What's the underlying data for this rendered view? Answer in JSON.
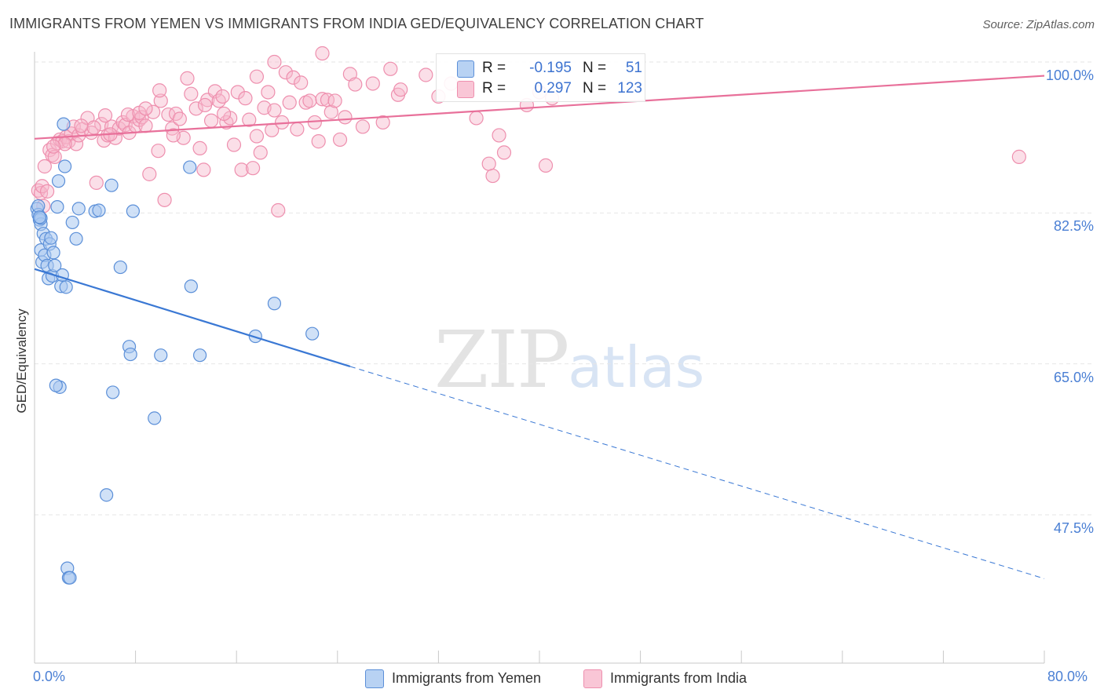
{
  "title": "IMMIGRANTS FROM YEMEN VS IMMIGRANTS FROM INDIA GED/EQUIVALENCY CORRELATION CHART",
  "source": "Source: ZipAtlas.com",
  "watermark": {
    "zip": "ZIP",
    "atlas": "atlas"
  },
  "colors": {
    "yemen_fill": "#a9c8f0",
    "yemen_stroke": "#5b8fd8",
    "yemen_line": "#3a78d4",
    "india_fill": "#f7b8cc",
    "india_stroke": "#ee8fae",
    "india_line": "#e8709a",
    "tick_label": "#4a7fd4",
    "grid": "#e6e6e6"
  },
  "stats": {
    "yemen": {
      "r_label": "R =",
      "r_value": "-0.195",
      "n_label": "N =",
      "n_value": "51"
    },
    "india": {
      "r_label": "R =",
      "r_value": "0.297",
      "n_label": "N =",
      "n_value": "123"
    }
  },
  "chart_data": {
    "type": "scatter",
    "title": "IMMIGRANTS FROM YEMEN VS IMMIGRANTS FROM INDIA GED/EQUIVALENCY CORRELATION CHART",
    "xlabel": "",
    "ylabel": "GED/Equivalency",
    "xlim": [
      0,
      80
    ],
    "ylim": [
      30,
      101.5
    ],
    "x_tick_labels": [
      "0.0%",
      "80.0%"
    ],
    "y_ticks": [
      100.0,
      82.5,
      65.0,
      47.5
    ],
    "y_tick_labels": [
      "100.0%",
      "82.5%",
      "65.0%",
      "47.5%"
    ],
    "grid": true,
    "legend_position": "bottom-center",
    "series": [
      {
        "name": "Immigrants from Yemen",
        "color": "#a9c8f0",
        "trend": {
          "x0": 0.0,
          "y0": 76.0,
          "x1": 25.0,
          "y1": 64.7,
          "dashed_to_x": 80.0,
          "dashed_to_y": 40.1
        },
        "points": [
          [
            0.2,
            83.0
          ],
          [
            0.3,
            82.3
          ],
          [
            0.4,
            81.7
          ],
          [
            0.5,
            81.2
          ],
          [
            0.5,
            78.2
          ],
          [
            0.6,
            76.8
          ],
          [
            0.7,
            80.1
          ],
          [
            0.8,
            77.6
          ],
          [
            0.9,
            79.5
          ],
          [
            1.0,
            76.4
          ],
          [
            1.1,
            74.9
          ],
          [
            1.2,
            78.9
          ],
          [
            1.3,
            79.6
          ],
          [
            1.4,
            75.2
          ],
          [
            1.5,
            77.9
          ],
          [
            1.6,
            76.4
          ],
          [
            1.8,
            83.2
          ],
          [
            1.9,
            86.2
          ],
          [
            2.0,
            62.3
          ],
          [
            2.1,
            74.0
          ],
          [
            2.2,
            75.3
          ],
          [
            2.3,
            92.8
          ],
          [
            2.4,
            87.9
          ],
          [
            2.5,
            73.9
          ],
          [
            2.6,
            41.3
          ],
          [
            2.7,
            40.2
          ],
          [
            2.8,
            40.2
          ],
          [
            3.0,
            81.4
          ],
          [
            3.3,
            79.5
          ],
          [
            3.5,
            83.0
          ],
          [
            4.8,
            82.7
          ],
          [
            5.1,
            82.8
          ],
          [
            5.7,
            49.8
          ],
          [
            6.1,
            85.7
          ],
          [
            6.2,
            61.7
          ],
          [
            6.8,
            76.2
          ],
          [
            7.5,
            67.0
          ],
          [
            7.6,
            66.1
          ],
          [
            7.8,
            82.7
          ],
          [
            9.5,
            58.7
          ],
          [
            10.0,
            66.0
          ],
          [
            12.3,
            87.8
          ],
          [
            12.4,
            74.0
          ],
          [
            13.1,
            66.0
          ],
          [
            17.5,
            68.2
          ],
          [
            19.0,
            72.0
          ],
          [
            22.0,
            68.5
          ],
          [
            0.3,
            83.3
          ],
          [
            0.5,
            81.9
          ],
          [
            1.7,
            62.5
          ],
          [
            0.4,
            82.0
          ]
        ]
      },
      {
        "name": "Immigrants from India",
        "color": "#f7b8cc",
        "trend": {
          "x0": 0.0,
          "y0": 91.1,
          "x1": 80.0,
          "y1": 98.4
        },
        "points": [
          [
            0.3,
            85.1
          ],
          [
            0.5,
            84.8
          ],
          [
            0.6,
            85.6
          ],
          [
            0.7,
            83.3
          ],
          [
            0.8,
            87.9
          ],
          [
            1.0,
            85.0
          ],
          [
            1.2,
            89.8
          ],
          [
            1.4,
            89.2
          ],
          [
            1.6,
            89.0
          ],
          [
            1.8,
            90.6
          ],
          [
            2.0,
            91.0
          ],
          [
            2.2,
            90.8
          ],
          [
            2.5,
            91.3
          ],
          [
            2.7,
            90.8
          ],
          [
            2.9,
            91.7
          ],
          [
            3.1,
            92.5
          ],
          [
            3.3,
            90.5
          ],
          [
            3.5,
            91.5
          ],
          [
            3.8,
            92.2
          ],
          [
            4.2,
            93.5
          ],
          [
            4.5,
            91.8
          ],
          [
            4.9,
            86.0
          ],
          [
            5.3,
            92.8
          ],
          [
            5.5,
            90.9
          ],
          [
            5.8,
            91.5
          ],
          [
            6.1,
            92.5
          ],
          [
            6.4,
            91.2
          ],
          [
            6.7,
            92.3
          ],
          [
            7.0,
            93.0
          ],
          [
            7.2,
            92.7
          ],
          [
            7.5,
            91.8
          ],
          [
            7.8,
            93.7
          ],
          [
            8.0,
            92.6
          ],
          [
            8.3,
            93.3
          ],
          [
            8.5,
            93.6
          ],
          [
            8.8,
            92.6
          ],
          [
            9.1,
            87.0
          ],
          [
            9.4,
            94.2
          ],
          [
            9.8,
            89.7
          ],
          [
            10.0,
            95.5
          ],
          [
            10.3,
            84.0
          ],
          [
            10.6,
            93.9
          ],
          [
            10.9,
            92.3
          ],
          [
            11.2,
            94.0
          ],
          [
            11.5,
            93.4
          ],
          [
            11.8,
            91.2
          ],
          [
            12.1,
            98.1
          ],
          [
            12.4,
            96.3
          ],
          [
            12.8,
            94.6
          ],
          [
            13.1,
            90.0
          ],
          [
            13.4,
            87.5
          ],
          [
            13.7,
            95.6
          ],
          [
            14.0,
            93.2
          ],
          [
            14.3,
            96.6
          ],
          [
            14.6,
            95.5
          ],
          [
            14.9,
            96.0
          ],
          [
            15.2,
            93.0
          ],
          [
            15.5,
            93.5
          ],
          [
            15.8,
            90.4
          ],
          [
            16.1,
            96.5
          ],
          [
            16.4,
            87.5
          ],
          [
            16.7,
            95.8
          ],
          [
            17.0,
            93.3
          ],
          [
            17.3,
            87.7
          ],
          [
            17.6,
            98.3
          ],
          [
            17.9,
            89.5
          ],
          [
            18.2,
            94.7
          ],
          [
            18.5,
            96.5
          ],
          [
            18.8,
            92.1
          ],
          [
            19.0,
            94.4
          ],
          [
            19.3,
            82.8
          ],
          [
            19.6,
            93.0
          ],
          [
            19.9,
            98.8
          ],
          [
            20.2,
            95.3
          ],
          [
            20.5,
            98.2
          ],
          [
            20.8,
            92.2
          ],
          [
            21.1,
            97.6
          ],
          [
            21.5,
            95.3
          ],
          [
            21.8,
            95.5
          ],
          [
            22.2,
            93.0
          ],
          [
            22.5,
            90.8
          ],
          [
            22.8,
            95.7
          ],
          [
            23.2,
            95.6
          ],
          [
            23.5,
            94.2
          ],
          [
            23.8,
            95.5
          ],
          [
            24.2,
            91.0
          ],
          [
            24.6,
            93.6
          ],
          [
            25.0,
            98.6
          ],
          [
            25.4,
            97.4
          ],
          [
            26.0,
            92.5
          ],
          [
            26.8,
            97.5
          ],
          [
            27.6,
            93.0
          ],
          [
            28.2,
            99.2
          ],
          [
            28.8,
            96.2
          ],
          [
            29.0,
            96.8
          ],
          [
            31.0,
            98.5
          ],
          [
            32.0,
            96.0
          ],
          [
            33.0,
            97.5
          ],
          [
            35.0,
            93.5
          ],
          [
            36.0,
            88.2
          ],
          [
            36.3,
            86.8
          ],
          [
            36.8,
            91.5
          ],
          [
            37.2,
            89.5
          ],
          [
            39.0,
            95.0
          ],
          [
            40.0,
            96.5
          ],
          [
            40.5,
            88.0
          ],
          [
            41.0,
            95.8
          ],
          [
            19.0,
            100.0
          ],
          [
            22.8,
            101.0
          ],
          [
            7.4,
            93.9
          ],
          [
            5.6,
            93.8
          ],
          [
            8.3,
            94.1
          ],
          [
            9.9,
            96.7
          ],
          [
            3.7,
            92.6
          ],
          [
            4.7,
            92.4
          ],
          [
            2.4,
            90.5
          ],
          [
            1.5,
            90.2
          ],
          [
            78.0,
            89.0
          ],
          [
            13.5,
            95.0
          ],
          [
            15.0,
            94.0
          ],
          [
            17.6,
            91.4
          ],
          [
            6.0,
            91.6
          ],
          [
            8.8,
            94.6
          ],
          [
            11.0,
            91.5
          ]
        ]
      }
    ]
  },
  "legend": {
    "yemen": "Immigrants from Yemen",
    "india": "Immigrants from India"
  }
}
